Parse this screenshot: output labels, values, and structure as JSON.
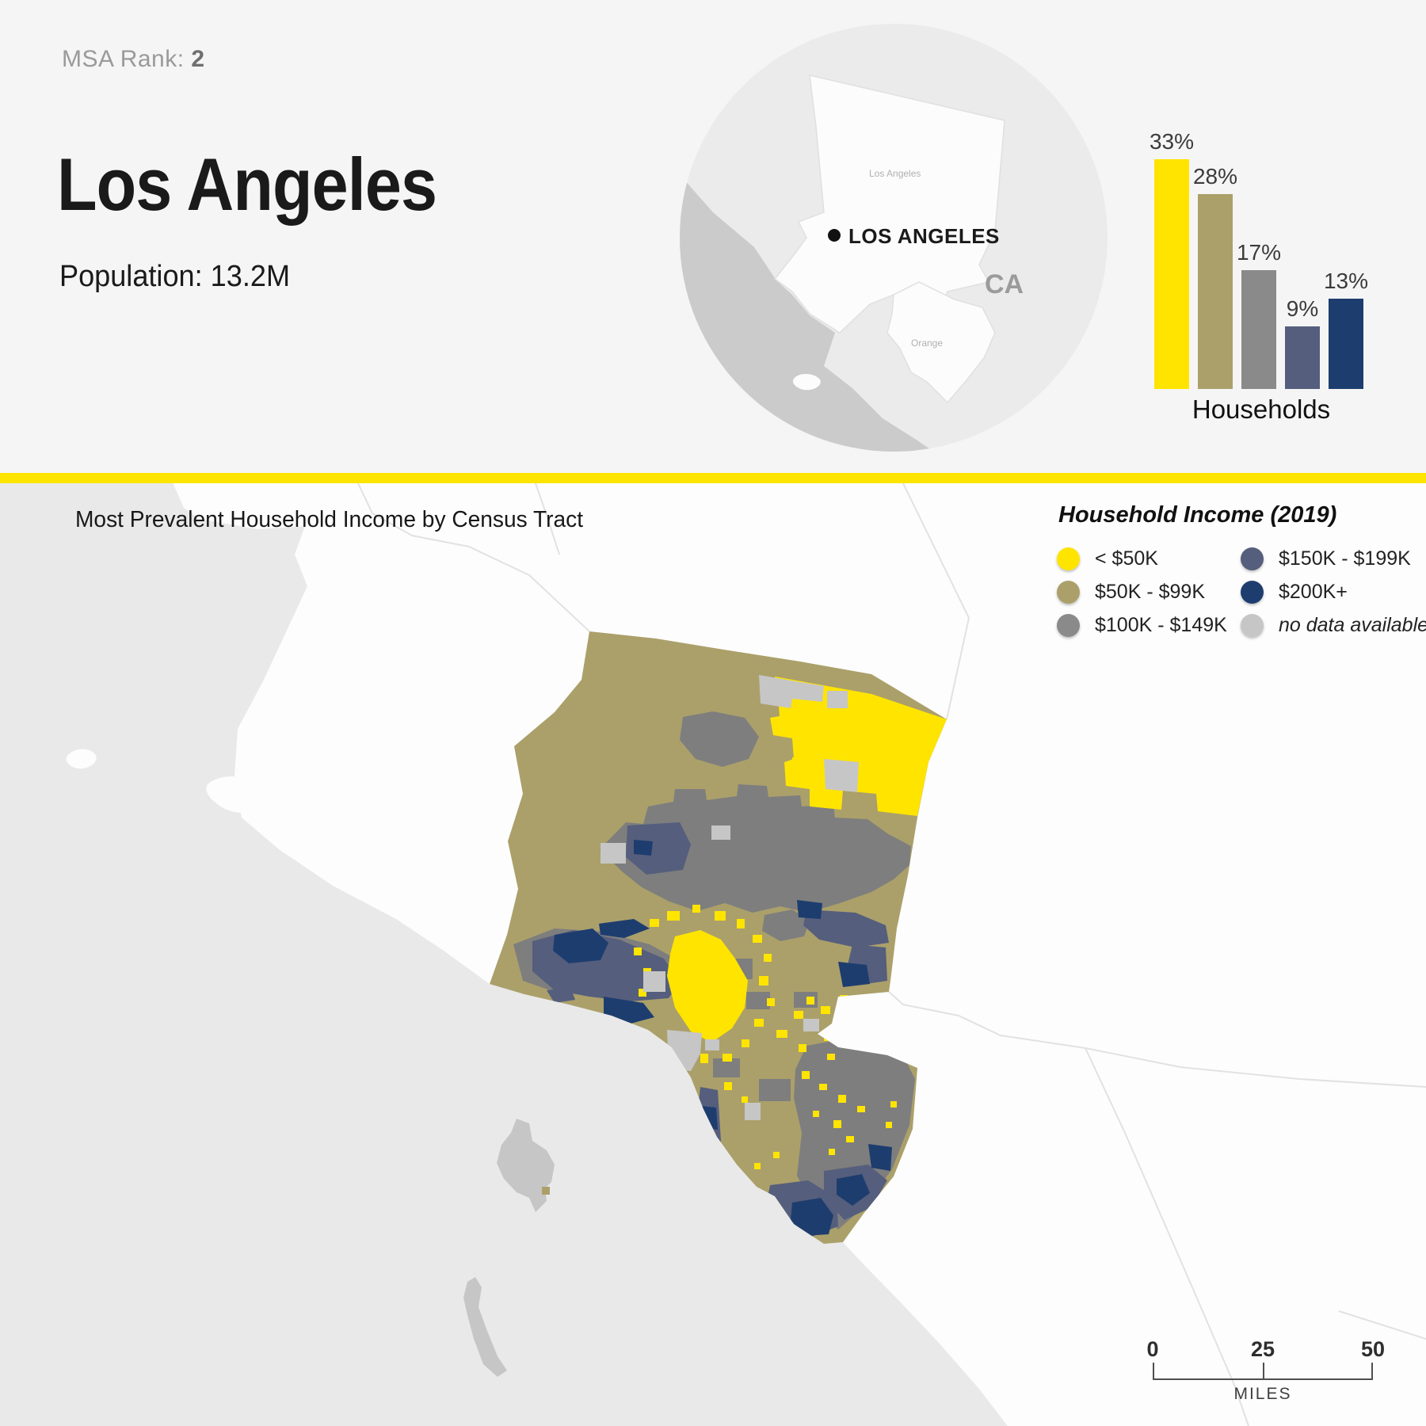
{
  "header": {
    "msa_rank_label": "MSA Rank:",
    "msa_rank_value": "2",
    "title": "Los Angeles",
    "population_label": "Population:",
    "population_value": "13.2M"
  },
  "inset_map": {
    "city_label": "LOS ANGELES",
    "county_label_1": "Los Angeles",
    "county_label_2": "Orange",
    "state_label": "CA"
  },
  "chart_data": {
    "type": "bar",
    "categories": [
      "< $50K",
      "$50K - $99K",
      "$100K - $149K",
      "$150K - $199K",
      "$200K+"
    ],
    "values": [
      33,
      28,
      17,
      9,
      13
    ],
    "unit": "%",
    "xlabel": "Households",
    "ylim": [
      0,
      33
    ],
    "grid": false,
    "colors": [
      "#FFE400",
      "#ABA06A",
      "#8A8A8A",
      "#555E7C",
      "#1E3D6F"
    ]
  },
  "map": {
    "title": "Most Prevalent Household Income by Census Tract",
    "legend": {
      "title": "Household Income (2019)",
      "items": [
        {
          "label": "< $50K",
          "color": "#FFE400",
          "italic": false
        },
        {
          "label": "$50K - $99K",
          "color": "#ABA06A",
          "italic": false
        },
        {
          "label": "$100K - $149K",
          "color": "#8A8A8A",
          "italic": false
        },
        {
          "label": "$150K - $199K",
          "color": "#555E7C",
          "italic": false
        },
        {
          "label": "$200K+",
          "color": "#1E3D6F",
          "italic": false
        },
        {
          "label": "no data available",
          "color": "#C6C6C6",
          "italic": true
        }
      ]
    },
    "scalebar": {
      "ticks": [
        "0",
        "25",
        "50"
      ],
      "unit": "MILES"
    }
  },
  "colors": {
    "accent_yellow": "#FFE400",
    "header_bg": "#F5F5F5",
    "ocean": "#E9E9E9",
    "land": "#FDFDFD",
    "inset_circle": "#EBEBEB",
    "inset_ocean": "#CBCBCB"
  }
}
